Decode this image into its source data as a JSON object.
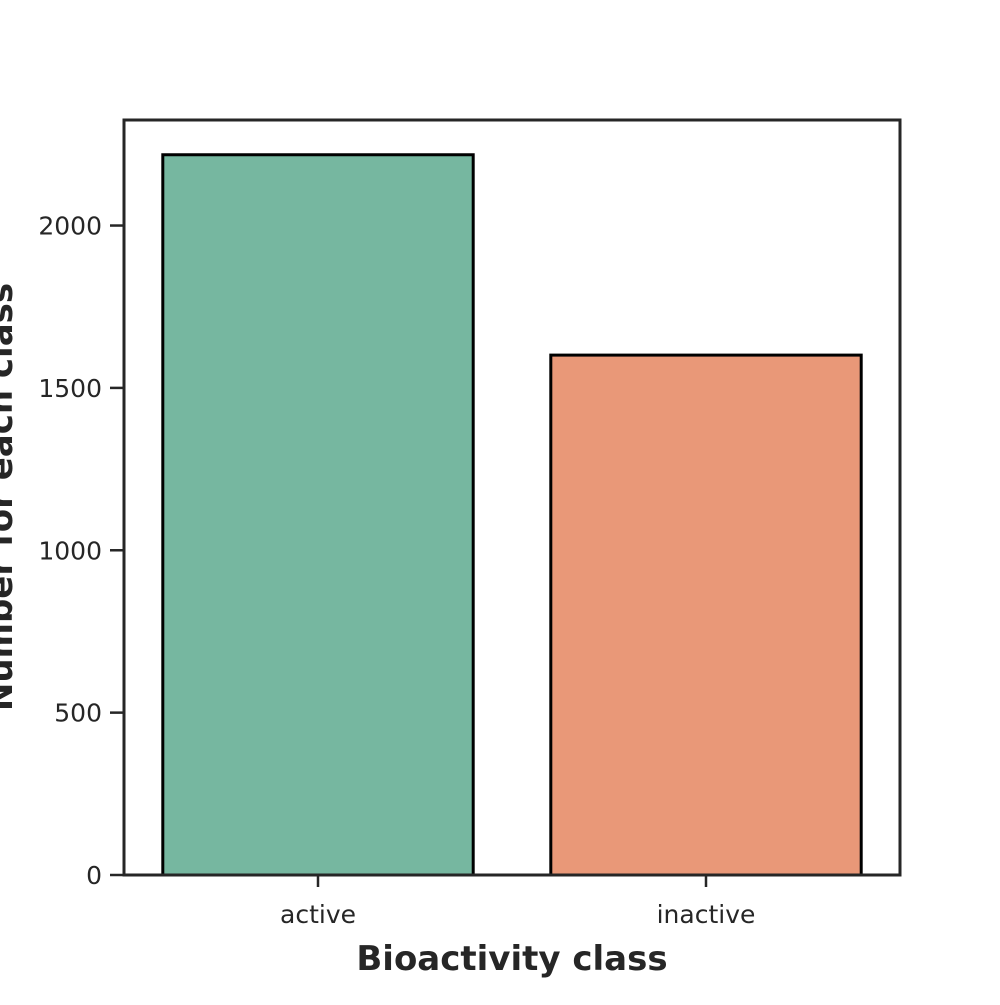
{
  "chart_data": {
    "type": "bar",
    "title": "",
    "xlabel": "Bioactivity class",
    "ylabel": "Number for each class",
    "categories": [
      "active",
      "inactive"
    ],
    "values": [
      2218,
      1601
    ],
    "colors": [
      "#76b7a0",
      "#e99878"
    ],
    "ylim": [
      0,
      2325
    ],
    "yticks": [
      0,
      500,
      1000,
      1500,
      2000
    ],
    "ytick_labels": [
      "0",
      "500",
      "1000",
      "1500",
      "2000"
    ],
    "grid": false,
    "legend": "none"
  }
}
